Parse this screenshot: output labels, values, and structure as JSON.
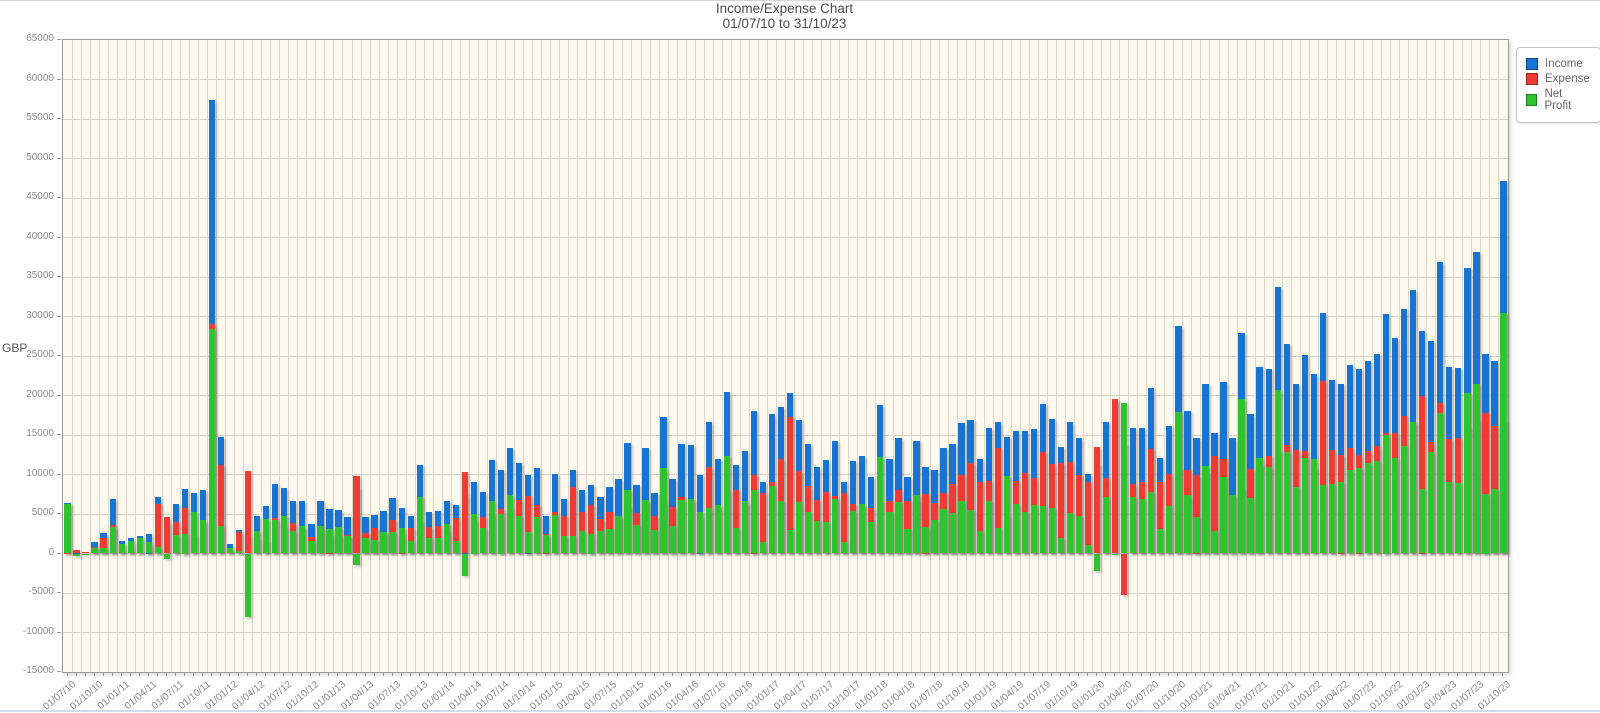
{
  "chart": {
    "title": "Income/Expense Chart",
    "subtitle": "01/07/10 to 31/10/23",
    "y_axis_label": "GBP"
  },
  "legend": {
    "items": [
      {
        "label": "Income",
        "color": "#1874d2"
      },
      {
        "label": "Expense",
        "color": "#ef3b33"
      },
      {
        "label": "Net Profit",
        "color": "#2fc32f"
      }
    ],
    "position": "top-right"
  },
  "colors": {
    "plot_background": "#fdf9ef",
    "gridline": "#dbd7cb",
    "axis_border": "#9a9a9a",
    "tick_text": "#8a8a8a",
    "title_text": "#4d4d4d"
  },
  "chart_data": {
    "type": "bar",
    "overlay": true,
    "title": "Income/Expense Chart",
    "subtitle": "01/07/10 to 31/10/23",
    "xlabel": "",
    "ylabel": "GBP",
    "ylim": [
      -15000,
      65000
    ],
    "ytick_step": 5000,
    "grid": true,
    "legend_position": "top-right",
    "x_tick_every": 3,
    "y_tick_labels": [
      "65000",
      "60000",
      "55000",
      "50000",
      "45000",
      "40000",
      "35000",
      "30000",
      "25000",
      "20000",
      "15000",
      "10000",
      "5000",
      "0",
      "-5000",
      "-10000",
      "-15000"
    ],
    "categories": [
      "01/07/10",
      "01/08/10",
      "01/09/10",
      "01/10/10",
      "01/11/10",
      "01/12/10",
      "01/01/11",
      "01/02/11",
      "01/03/11",
      "01/04/11",
      "01/05/11",
      "01/06/11",
      "01/07/11",
      "01/08/11",
      "01/09/11",
      "01/10/11",
      "01/11/11",
      "01/12/11",
      "01/01/12",
      "01/02/12",
      "01/03/12",
      "01/04/12",
      "01/05/12",
      "01/06/12",
      "01/07/12",
      "01/08/12",
      "01/09/12",
      "01/10/12",
      "01/11/12",
      "01/12/12",
      "01/01/13",
      "01/02/13",
      "01/03/13",
      "01/04/13",
      "01/05/13",
      "01/06/13",
      "01/07/13",
      "01/08/13",
      "01/09/13",
      "01/10/13",
      "01/11/13",
      "01/12/13",
      "01/01/14",
      "01/02/14",
      "01/03/14",
      "01/04/14",
      "01/05/14",
      "01/06/14",
      "01/07/14",
      "01/08/14",
      "01/09/14",
      "01/10/14",
      "01/11/14",
      "01/12/14",
      "01/01/15",
      "01/02/15",
      "01/03/15",
      "01/04/15",
      "01/05/15",
      "01/06/15",
      "01/07/15",
      "01/08/15",
      "01/09/15",
      "01/10/15",
      "01/11/15",
      "01/12/15",
      "01/01/16",
      "01/02/16",
      "01/03/16",
      "01/04/16",
      "01/05/16",
      "01/06/16",
      "01/07/16",
      "01/08/16",
      "01/09/16",
      "01/10/16",
      "01/11/16",
      "01/12/16",
      "01/01/17",
      "01/02/17",
      "01/03/17",
      "01/04/17",
      "01/05/17",
      "01/06/17",
      "01/07/17",
      "01/08/17",
      "01/09/17",
      "01/10/17",
      "01/11/17",
      "01/12/17",
      "01/01/18",
      "01/02/18",
      "01/03/18",
      "01/04/18",
      "01/05/18",
      "01/06/18",
      "01/07/18",
      "01/08/18",
      "01/09/18",
      "01/10/18",
      "01/11/18",
      "01/12/18",
      "01/01/19",
      "01/02/19",
      "01/03/19",
      "01/04/19",
      "01/05/19",
      "01/06/19",
      "01/07/19",
      "01/08/19",
      "01/09/19",
      "01/10/19",
      "01/11/19",
      "01/12/19",
      "01/01/20",
      "01/02/20",
      "01/03/20",
      "01/04/20",
      "01/05/20",
      "01/06/20",
      "01/07/20",
      "01/08/20",
      "01/09/20",
      "01/10/20",
      "01/11/20",
      "01/12/20",
      "01/01/21",
      "01/02/21",
      "01/03/21",
      "01/04/21",
      "01/05/21",
      "01/06/21",
      "01/07/21",
      "01/08/21",
      "01/09/21",
      "01/10/21",
      "01/11/21",
      "01/12/21",
      "01/01/22",
      "01/02/22",
      "01/03/22",
      "01/04/22",
      "01/05/22",
      "01/06/22",
      "01/07/22",
      "01/08/22",
      "01/09/22",
      "01/10/22",
      "01/11/22",
      "01/12/22",
      "01/01/23",
      "01/02/23",
      "01/03/23",
      "01/04/23",
      "01/05/23",
      "01/06/23",
      "01/07/23",
      "01/08/23",
      "01/09/23",
      "01/10/23"
    ],
    "series": [
      {
        "name": "Income",
        "color": "#1874d2",
        "values": [
          6400,
          100,
          150,
          1500,
          2600,
          6900,
          1600,
          2000,
          2200,
          2500,
          7100,
          3900,
          6300,
          8200,
          7600,
          8100,
          57400,
          14700,
          1200,
          3000,
          2300,
          4800,
          6000,
          8800,
          8300,
          6700,
          6700,
          3700,
          6600,
          5600,
          5500,
          4600,
          8300,
          4600,
          4900,
          5400,
          7000,
          5700,
          4800,
          11200,
          5200,
          5400,
          6700,
          6100,
          7500,
          9100,
          7800,
          11800,
          10600,
          13300,
          11500,
          10000,
          10800,
          4800,
          10100,
          6900,
          10600,
          8000,
          8700,
          7200,
          8400,
          9400,
          14000,
          8700,
          13300,
          7700,
          17300,
          9400,
          13900,
          13700,
          10000,
          16700,
          11900,
          20500,
          11200,
          13000,
          18100,
          9000,
          17600,
          18600,
          20300,
          16900,
          13900,
          10900,
          11800,
          14200,
          9100,
          11700,
          12300,
          9700,
          18800,
          12000,
          14600,
          9700,
          14200,
          10900,
          10600,
          13300,
          13900,
          16500,
          16900,
          11900,
          15900,
          16600,
          14700,
          15500,
          15500,
          15700,
          18900,
          17000,
          13500,
          16700,
          14600,
          10100,
          11300,
          16700,
          19300,
          13900,
          15900,
          15900,
          21000,
          12100,
          16100,
          28800,
          18000,
          14600,
          21400,
          15200,
          21700,
          14600,
          27900,
          17700,
          23600,
          23300,
          33700,
          26500,
          21500,
          25100,
          22700,
          30500,
          21900,
          21500,
          23900,
          23300,
          24400,
          25300,
          30300,
          27300,
          31000,
          33400,
          28200,
          26900,
          36900,
          23600,
          23500,
          36200,
          38200,
          25300,
          24400,
          47200
        ]
      },
      {
        "name": "Expense",
        "color": "#ef3b33",
        "values": [
          100,
          400,
          250,
          800,
          1900,
          3600,
          400,
          400,
          300,
          1000,
          6300,
          4600,
          4000,
          5700,
          2400,
          3800,
          29000,
          11200,
          500,
          2700,
          10400,
          1900,
          1600,
          4500,
          3500,
          3800,
          3200,
          2100,
          3100,
          2500,
          2200,
          2400,
          9800,
          2600,
          3200,
          2700,
          4300,
          2500,
          3200,
          4100,
          3300,
          3500,
          3000,
          4500,
          10300,
          4100,
          4600,
          5100,
          5600,
          5900,
          6800,
          7300,
          6200,
          2500,
          5200,
          4700,
          8400,
          5200,
          6200,
          4400,
          5300,
          4600,
          5900,
          5100,
          6500,
          4700,
          6500,
          5900,
          7100,
          6800,
          4700,
          10900,
          5800,
          8200,
          8000,
          6300,
          10000,
          7600,
          9000,
          11900,
          17300,
          10400,
          8600,
          6800,
          7800,
          7300,
          7600,
          6300,
          6000,
          5700,
          6600,
          6700,
          8100,
          6600,
          6800,
          7500,
          6400,
          7700,
          8800,
          9900,
          11400,
          9100,
          9200,
          13400,
          4900,
          9200,
          10200,
          9600,
          12900,
          11300,
          11500,
          11600,
          9900,
          9000,
          13500,
          9600,
          19500,
          -5200,
          8800,
          9000,
          13200,
          9000,
          10100,
          10900,
          10600,
          10000,
          10300,
          12300,
          12000,
          7200,
          8400,
          10700,
          11500,
          12400,
          13000,
          13700,
          13100,
          13000,
          10800,
          21800,
          13100,
          12500,
          13300,
          12500,
          13000,
          13600,
          15300,
          15200,
          17400,
          16700,
          20000,
          14100,
          19100,
          14500,
          14600,
          15900,
          16800,
          17800,
          16200,
          16800
        ]
      },
      {
        "name": "Net Profit",
        "color": "#2fc32f",
        "values": [
          6300,
          -300,
          -100,
          700,
          700,
          3300,
          1200,
          1600,
          1900,
          1500,
          800,
          -700,
          2300,
          2500,
          5200,
          4300,
          28400,
          3500,
          700,
          300,
          -8100,
          2900,
          4400,
          4300,
          4800,
          2900,
          3500,
          1600,
          3500,
          3100,
          3300,
          2200,
          -1500,
          2000,
          1700,
          2700,
          2700,
          3200,
          1600,
          7100,
          1900,
          1900,
          3700,
          1600,
          -2800,
          5000,
          3200,
          6700,
          5000,
          7400,
          4700,
          2700,
          4600,
          2300,
          4900,
          2200,
          2200,
          2800,
          2500,
          2800,
          3100,
          4800,
          8100,
          3600,
          6800,
          3000,
          10800,
          3500,
          6800,
          6900,
          5300,
          5800,
          6100,
          12300,
          3200,
          6700,
          8100,
          1400,
          8600,
          6700,
          3000,
          6500,
          5300,
          4100,
          4000,
          6900,
          1500,
          5400,
          6300,
          4000,
          12200,
          5300,
          6500,
          3100,
          7400,
          3400,
          4200,
          5600,
          5100,
          6600,
          5500,
          2800,
          6700,
          3200,
          9800,
          6300,
          5300,
          6100,
          6000,
          5700,
          2000,
          5100,
          4700,
          1100,
          -2200,
          7100,
          -200,
          19100,
          7100,
          6900,
          7800,
          3100,
          6000,
          17900,
          7400,
          4600,
          11100,
          2900,
          9700,
          7400,
          19500,
          7000,
          12100,
          10900,
          20700,
          12800,
          8400,
          12100,
          11900,
          8700,
          8800,
          9000,
          10600,
          10800,
          11400,
          11700,
          15000,
          12100,
          13600,
          16700,
          8200,
          12800,
          17800,
          9100,
          8900,
          20300,
          21400,
          7500,
          8200,
          30400
        ]
      }
    ]
  }
}
